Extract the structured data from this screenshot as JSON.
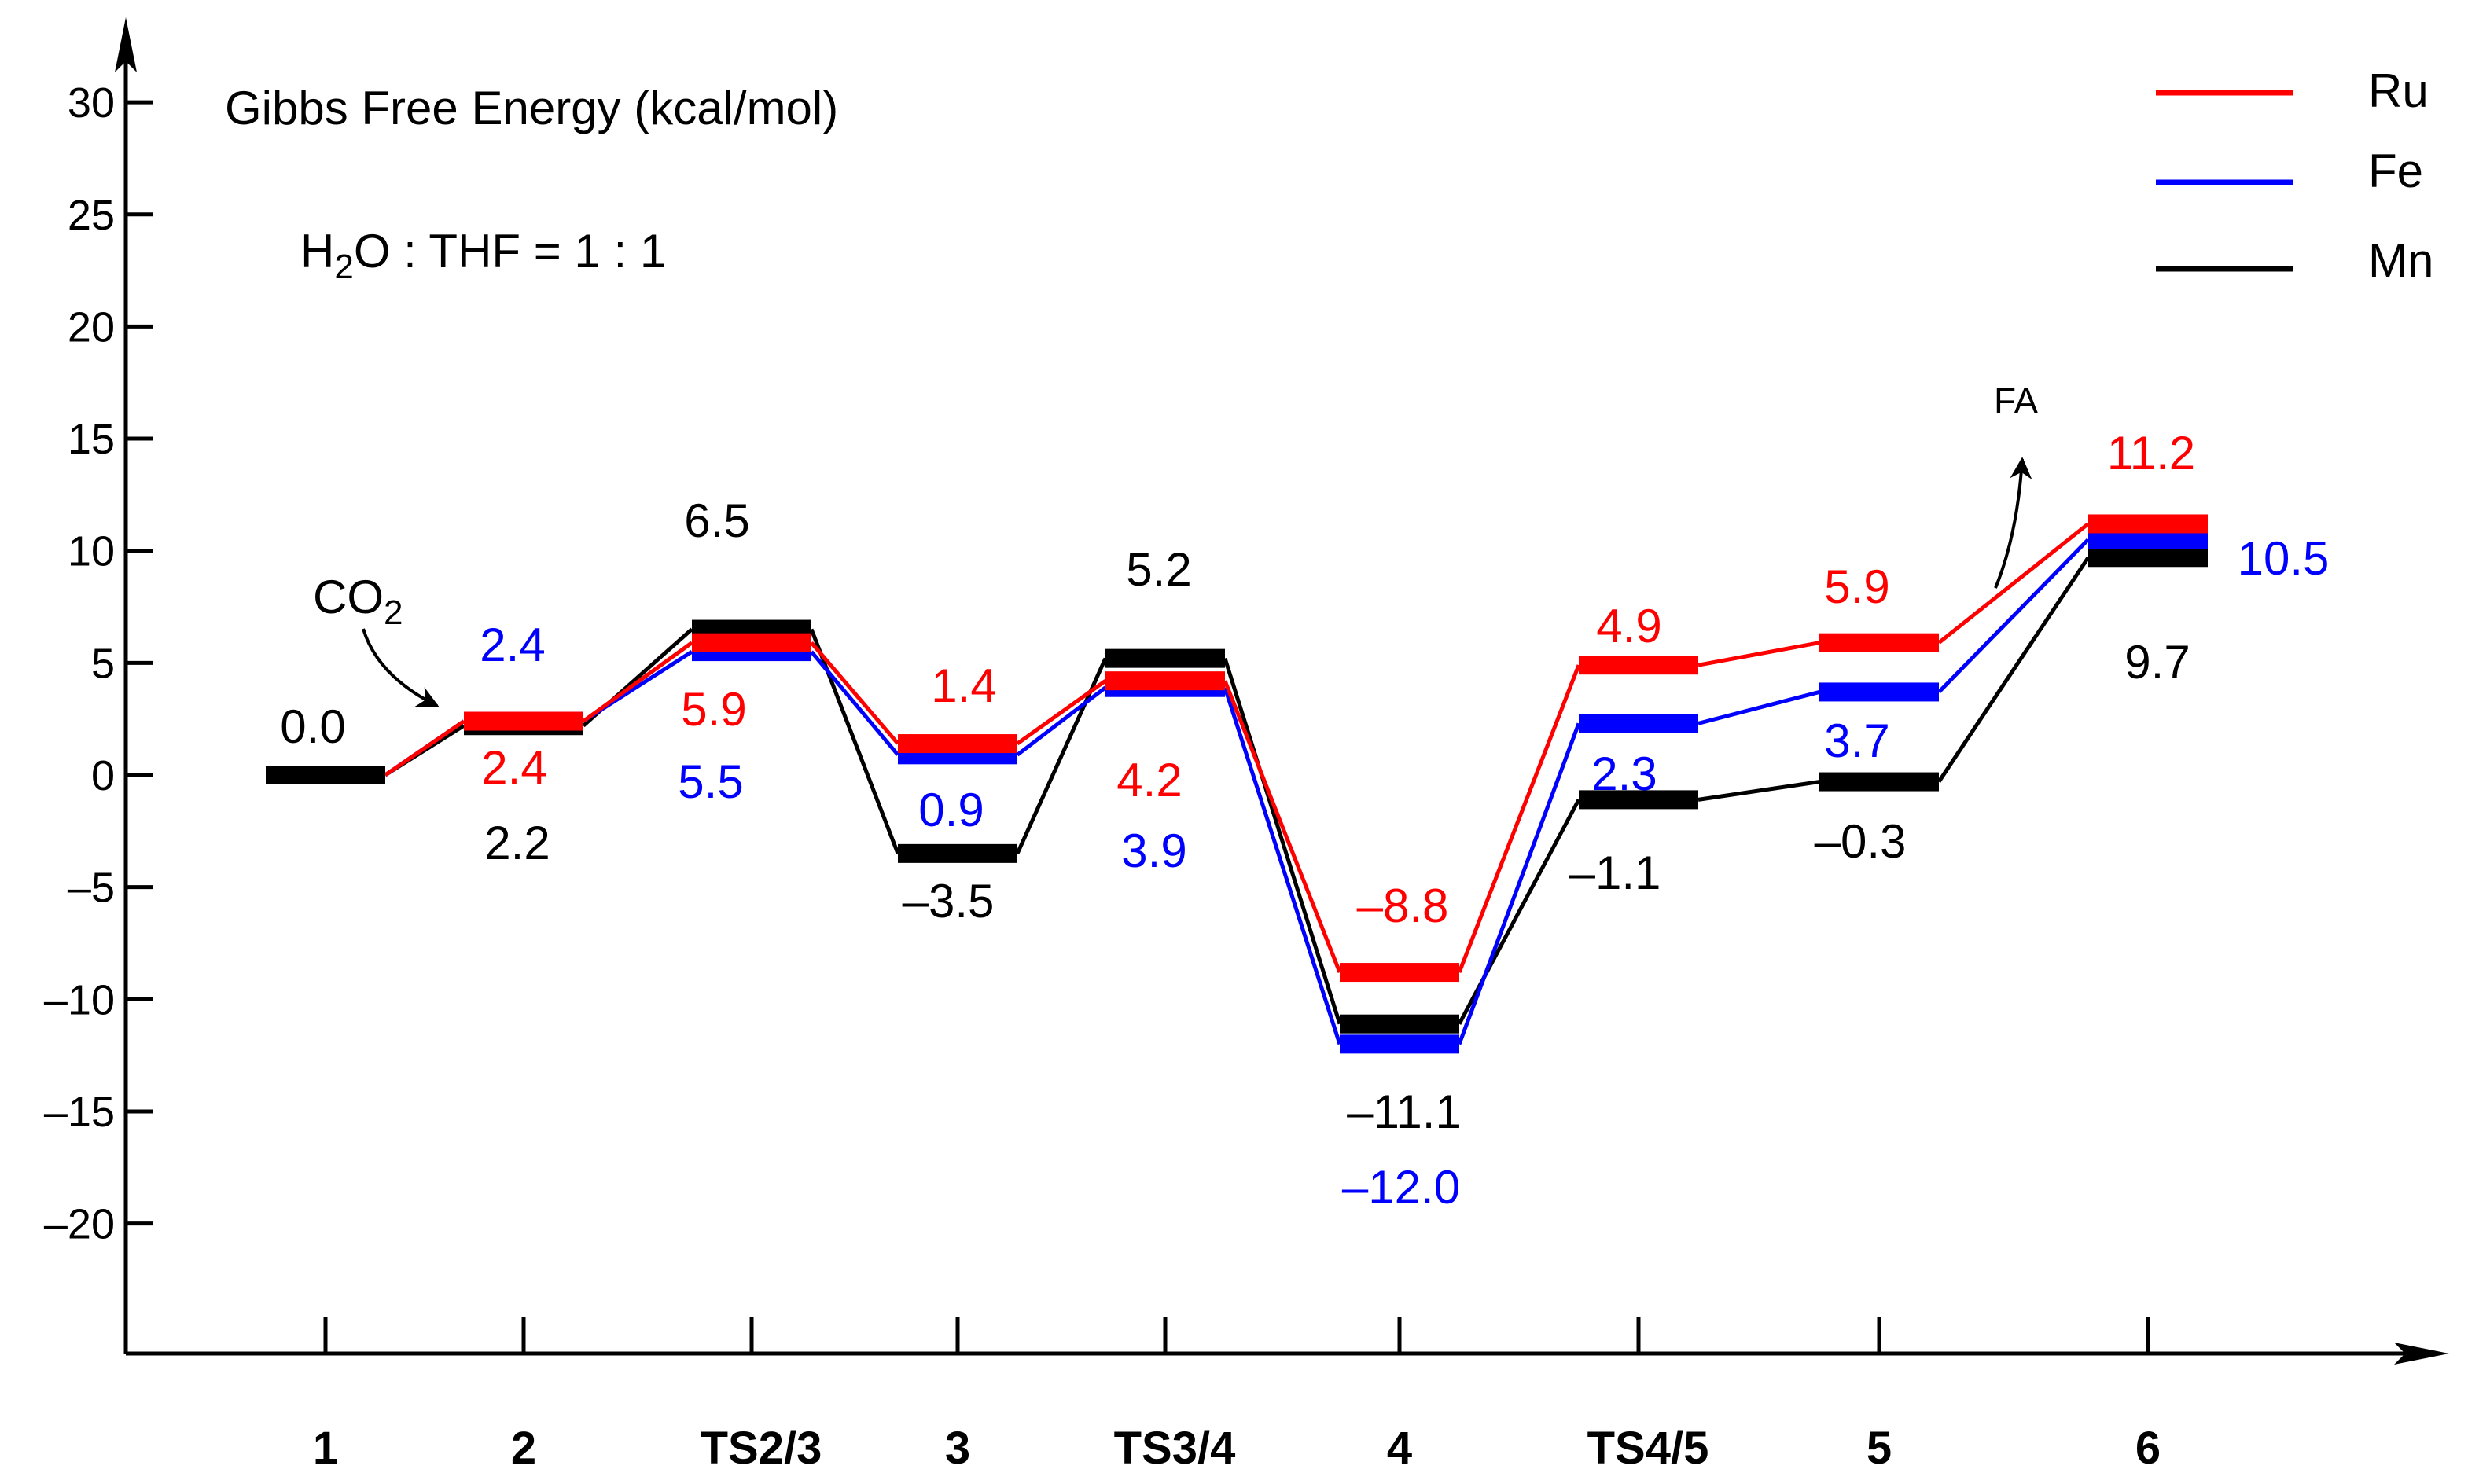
{
  "chart_data": {
    "type": "energy-profile",
    "title": "Gibbs Free Energy (kcal/mol)",
    "condition": {
      "prefix": "H",
      "sub": "2",
      "rest": "O : THF = 1 : 1"
    },
    "ylabel": "Gibbs Free Energy (kcal/mol)",
    "xlabel": "",
    "ylim": [
      -25,
      32
    ],
    "yticks": [
      30,
      25,
      20,
      15,
      10,
      5,
      0,
      -5,
      -10,
      -15,
      -20
    ],
    "ytick_labels": [
      "30",
      "25",
      "20",
      "15",
      "10",
      "5",
      "0",
      "–5",
      "–10",
      "–15",
      "–20"
    ],
    "categories": [
      "1",
      "2",
      "TS2/3",
      "3",
      "TS3/4",
      "4",
      "TS4/5",
      "5",
      "6"
    ],
    "legend": {
      "placement": "top-right",
      "entries": [
        {
          "name": "Ru",
          "color": "#ff0000"
        },
        {
          "name": "Fe",
          "color": "#0000ff"
        },
        {
          "name": "Mn",
          "color": "#000000"
        }
      ]
    },
    "series": [
      {
        "name": "Ru",
        "color": "#ff0000",
        "values": [
          0.0,
          2.4,
          5.9,
          1.4,
          4.2,
          -8.8,
          4.9,
          5.9,
          11.2
        ],
        "labels": [
          null,
          "2.4",
          "5.9",
          "1.4",
          "4.2",
          "–8.8",
          "4.9",
          "5.9",
          "11.2"
        ]
      },
      {
        "name": "Fe",
        "color": "#0000ff",
        "values": [
          0.0,
          2.4,
          5.5,
          0.9,
          3.9,
          -12.0,
          2.3,
          3.7,
          10.5
        ],
        "labels": [
          null,
          "2.4",
          "5.5",
          "0.9",
          "3.9",
          "–12.0",
          "2.3",
          "3.7",
          "10.5"
        ]
      },
      {
        "name": "Mn",
        "color": "#000000",
        "values": [
          0.0,
          2.2,
          6.5,
          -3.5,
          5.2,
          -11.1,
          -1.1,
          -0.3,
          9.7
        ],
        "labels": [
          "0.0",
          "2.2",
          "6.5",
          "–3.5",
          "5.2",
          "–11.1",
          "–1.1",
          "–0.3",
          "9.7"
        ]
      }
    ],
    "annotations": [
      {
        "text": "CO",
        "sub": "2",
        "target": "2"
      },
      {
        "text": "FA",
        "target": "6"
      }
    ]
  }
}
